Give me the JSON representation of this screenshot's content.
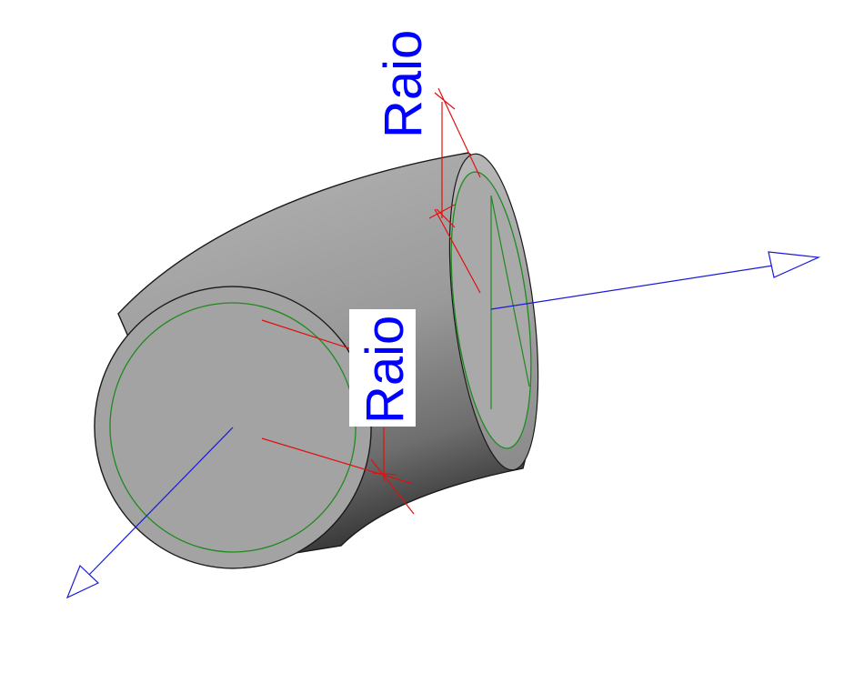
{
  "labels": {
    "radius_top": "Raio",
    "radius_center": "Raio"
  },
  "colors": {
    "background": "#ffffff",
    "pipe_light": "#a8a8a8",
    "pipe_dark": "#4a4a4a",
    "face_fill": "#a2a2a2",
    "outline": "#1a1a1a",
    "inner_circle": "#1f8a1f",
    "dimension_line": "#e01010",
    "axis_arrow": "#1a1adc",
    "label_text": "#0000ff",
    "label_box": "#ffffff"
  }
}
